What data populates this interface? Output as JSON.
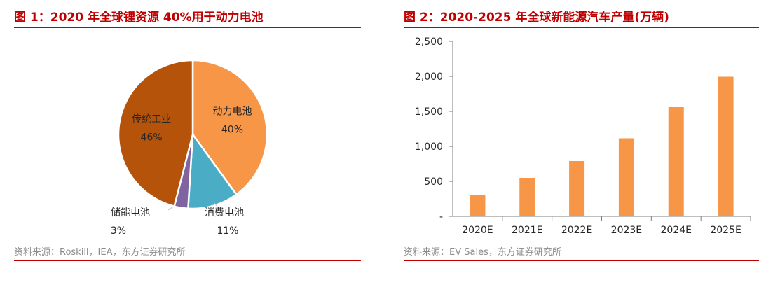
{
  "charts": {
    "left": {
      "title": "图 1：2020 年全球锂资源 40%用于动力电池",
      "source": "资料来源：Roskill，IEA，东方证券研究所"
    },
    "right": {
      "title": "图 2：2020-2025 年全球新能源汽车产量(万辆)",
      "source": "资料来源：EV Sales，东方证券研究所"
    }
  },
  "colors": {
    "title_red": "#c00000",
    "bar_orange": "#f79646",
    "pie_power": "#f79646",
    "pie_consumer": "#4bacc6",
    "pie_storage": "#8064a2",
    "pie_traditional": "#b45309"
  },
  "chart_data": [
    {
      "type": "pie",
      "title": "图 1：2020 年全球锂资源 40%用于动力电池",
      "slices": [
        {
          "label": "动力电池",
          "value": 40,
          "value_text": "40%",
          "color": "#f79646"
        },
        {
          "label": "消费电池",
          "value": 11,
          "value_text": "11%",
          "color": "#4bacc6"
        },
        {
          "label": "储能电池",
          "value": 3,
          "value_text": "3%",
          "color": "#8064a2"
        },
        {
          "label": "传统工业",
          "value": 46,
          "value_text": "46%",
          "color": "#b45309"
        }
      ]
    },
    {
      "type": "bar",
      "title": "图 2：2020-2025 年全球新能源汽车产量(万辆)",
      "categories": [
        "2020E",
        "2021E",
        "2022E",
        "2023E",
        "2024E",
        "2025E"
      ],
      "values": [
        310,
        550,
        790,
        1115,
        1560,
        1995
      ],
      "ylim": [
        0,
        2500
      ],
      "yticks": [
        0,
        500,
        1000,
        1500,
        2000,
        2500
      ],
      "ytick_labels": [
        "-",
        "500",
        "1,000",
        "1,500",
        "2,000",
        "2,500"
      ],
      "grid": false,
      "color": "#f79646"
    }
  ]
}
